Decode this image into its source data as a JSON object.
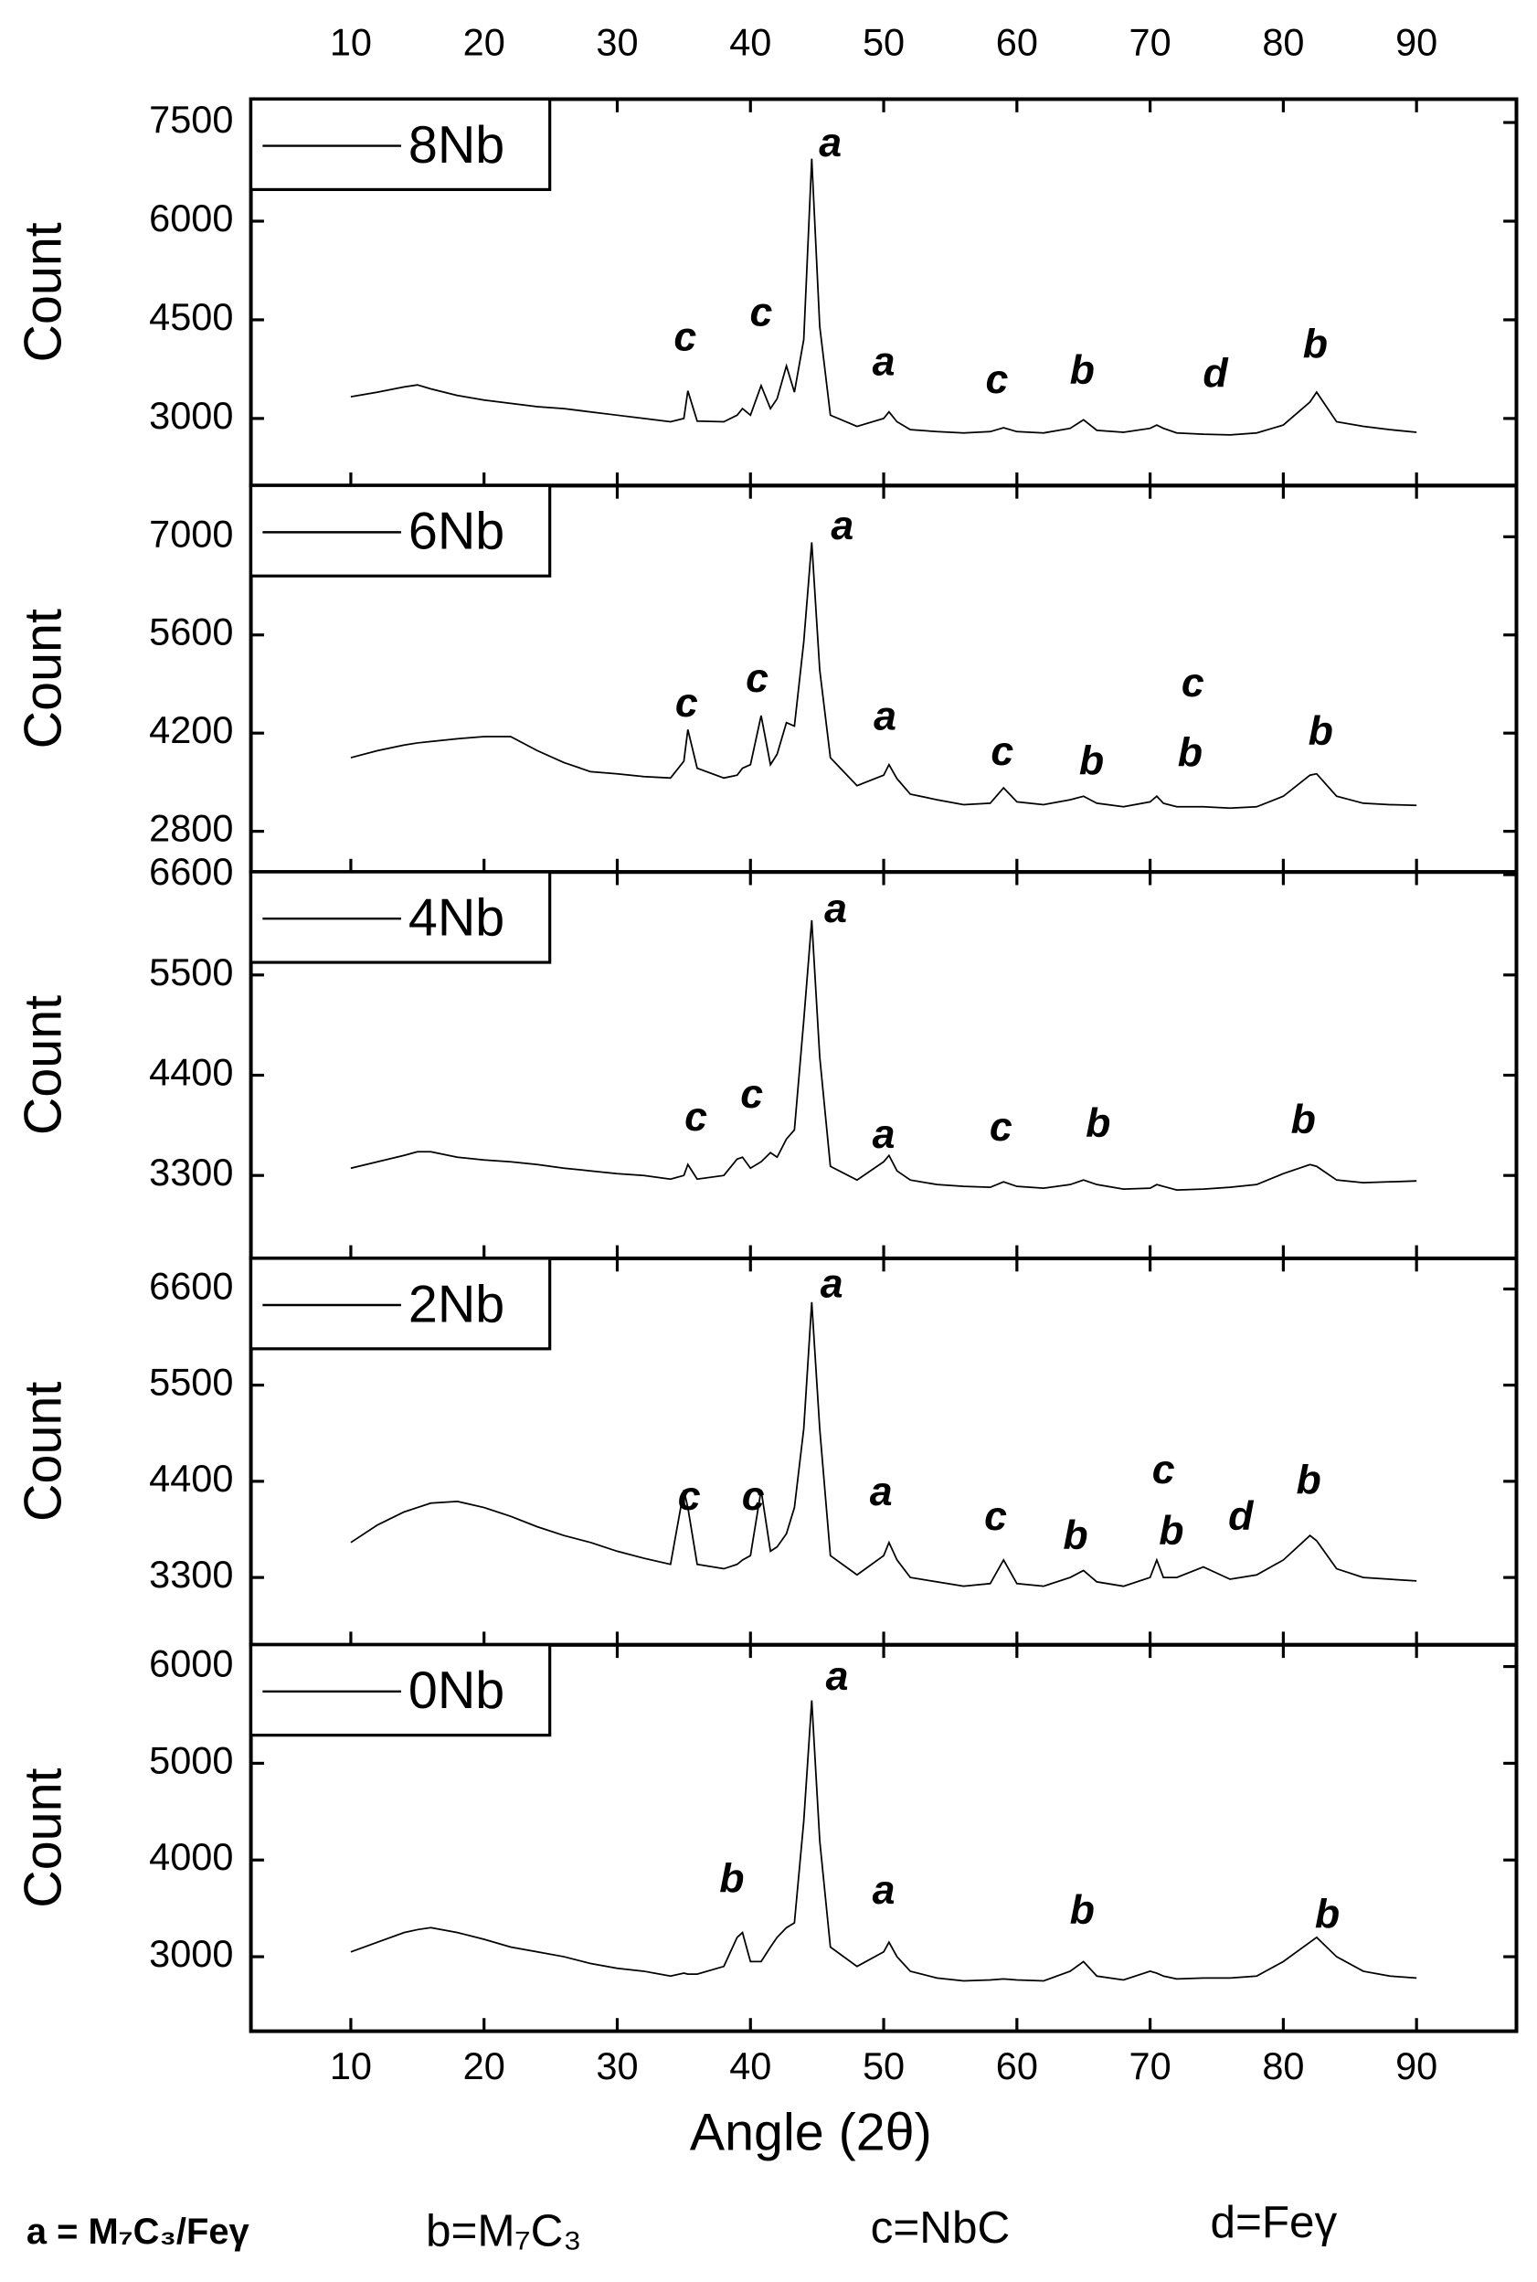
{
  "chart_data": [
    {
      "type": "line",
      "ylabel": "Count",
      "xlim": [
        2.5,
        97.5
      ],
      "xticks": [
        10,
        20,
        30,
        40,
        50,
        60,
        70,
        80,
        90
      ],
      "ylim": [
        1980,
        7855
      ],
      "yticks": [
        3000,
        4500,
        6000,
        7500
      ],
      "legend": "upper left",
      "x": [
        10,
        12,
        14,
        15,
        16,
        18,
        20,
        22,
        24,
        26,
        28,
        30,
        32,
        34,
        35,
        35.3,
        36,
        38,
        39,
        39.4,
        40,
        40.8,
        41.5,
        42,
        42.7,
        43.3,
        44,
        44.6,
        45.2,
        46,
        48,
        50,
        50.4,
        51,
        52,
        54,
        56,
        58,
        59,
        60,
        62,
        64,
        65,
        66,
        68,
        70,
        70.5,
        71,
        72,
        74,
        76,
        78,
        80,
        82,
        82.5,
        84,
        86,
        88,
        90
      ],
      "series": [
        {
          "name": "8Nb",
          "color": "#000000",
          "values": [
            3330,
            3400,
            3480,
            3510,
            3450,
            3350,
            3280,
            3230,
            3180,
            3150,
            3100,
            3050,
            3000,
            2950,
            3000,
            3420,
            2960,
            2950,
            3050,
            3150,
            3050,
            3500,
            3150,
            3300,
            3800,
            3400,
            4200,
            6950,
            4400,
            3050,
            2880,
            3000,
            3100,
            2950,
            2830,
            2800,
            2780,
            2800,
            2860,
            2800,
            2780,
            2850,
            2980,
            2820,
            2790,
            2850,
            2900,
            2850,
            2780,
            2760,
            2750,
            2780,
            2900,
            3250,
            3400,
            2950,
            2880,
            2830,
            2790
          ]
        }
      ],
      "annotations": [
        {
          "text": "c",
          "x": 35.1,
          "y": 4200
        },
        {
          "text": "c",
          "x": 40.8,
          "y": 4575
        },
        {
          "text": "a",
          "x": 46.0,
          "y": 7150
        },
        {
          "text": "a",
          "x": 50.0,
          "y": 3820
        },
        {
          "text": "c",
          "x": 58.5,
          "y": 3550
        },
        {
          "text": "b",
          "x": 64.9,
          "y": 3690
        },
        {
          "text": "d",
          "x": 74.9,
          "y": 3640
        },
        {
          "text": "b",
          "x": 82.4,
          "y": 4090
        }
      ]
    },
    {
      "type": "line",
      "ylabel": "Count",
      "xlim": [
        2.5,
        97.5
      ],
      "xticks": [
        10,
        20,
        30,
        40,
        50,
        60,
        70,
        80,
        90
      ],
      "ylim": [
        2220,
        7730
      ],
      "yticks": [
        2800,
        4200,
        5600,
        7000
      ],
      "legend": "upper left",
      "x": [
        10,
        12,
        14,
        15,
        16,
        18,
        20,
        22,
        24,
        26,
        28,
        30,
        32,
        34,
        35,
        35.3,
        36,
        38,
        39,
        39.4,
        40,
        40.8,
        41.5,
        42,
        42.7,
        43.3,
        44,
        44.6,
        45.2,
        46,
        48,
        50,
        50.4,
        51,
        52,
        54,
        56,
        58,
        59,
        60,
        62,
        64,
        65,
        66,
        68,
        70,
        70.5,
        71,
        72,
        74,
        76,
        78,
        80,
        82,
        82.5,
        84,
        86,
        88,
        90
      ],
      "series": [
        {
          "name": "6Nb",
          "color": "#000000",
          "values": [
            3850,
            3950,
            4030,
            4060,
            4080,
            4120,
            4150,
            4150,
            3950,
            3780,
            3650,
            3620,
            3580,
            3560,
            3800,
            4250,
            3700,
            3560,
            3600,
            3700,
            3750,
            4450,
            3750,
            3900,
            4350,
            4300,
            5500,
            6920,
            5100,
            3850,
            3450,
            3600,
            3750,
            3550,
            3330,
            3250,
            3180,
            3200,
            3420,
            3220,
            3180,
            3250,
            3300,
            3200,
            3150,
            3220,
            3300,
            3200,
            3150,
            3150,
            3130,
            3150,
            3300,
            3600,
            3620,
            3300,
            3200,
            3180,
            3170
          ]
        }
      ],
      "annotations": [
        {
          "text": "c",
          "x": 35.2,
          "y": 4590
        },
        {
          "text": "c",
          "x": 40.5,
          "y": 4940
        },
        {
          "text": "a",
          "x": 46.9,
          "y": 7120
        },
        {
          "text": "a",
          "x": 50.1,
          "y": 4400
        },
        {
          "text": "c",
          "x": 58.9,
          "y": 3900
        },
        {
          "text": "b",
          "x": 65.6,
          "y": 3760
        },
        {
          "text": "c",
          "x": 73.2,
          "y": 4880
        },
        {
          "text": "b",
          "x": 73.0,
          "y": 3880
        },
        {
          "text": "b",
          "x": 82.8,
          "y": 4190
        }
      ]
    },
    {
      "type": "line",
      "ylabel": "Count",
      "xlim": [
        2.5,
        97.5
      ],
      "xticks": [
        10,
        20,
        30,
        40,
        50,
        60,
        70,
        80,
        90
      ],
      "ylim": [
        2390,
        6630
      ],
      "yticks": [
        3300,
        4400,
        5500,
        6600
      ],
      "legend": "upper left",
      "x": [
        10,
        12,
        14,
        15,
        16,
        18,
        20,
        22,
        24,
        26,
        28,
        30,
        32,
        34,
        35,
        35.3,
        36,
        38,
        39,
        39.4,
        40,
        40.8,
        41.5,
        42,
        42.7,
        43.3,
        44,
        44.6,
        45.2,
        46,
        48,
        50,
        50.4,
        51,
        52,
        54,
        56,
        58,
        59,
        60,
        62,
        64,
        65,
        66,
        68,
        70,
        70.5,
        71,
        72,
        74,
        76,
        78,
        80,
        82,
        82.5,
        84,
        86,
        88,
        90
      ],
      "series": [
        {
          "name": "4Nb",
          "color": "#000000",
          "values": [
            3380,
            3450,
            3520,
            3560,
            3560,
            3500,
            3470,
            3450,
            3420,
            3380,
            3350,
            3320,
            3300,
            3260,
            3300,
            3420,
            3260,
            3300,
            3480,
            3500,
            3380,
            3450,
            3550,
            3500,
            3700,
            3800,
            5000,
            6100,
            4600,
            3400,
            3250,
            3450,
            3520,
            3350,
            3250,
            3200,
            3180,
            3170,
            3230,
            3180,
            3160,
            3200,
            3250,
            3200,
            3150,
            3160,
            3200,
            3180,
            3140,
            3150,
            3170,
            3200,
            3320,
            3420,
            3400,
            3250,
            3220,
            3230,
            3240
          ]
        }
      ],
      "annotations": [
        {
          "text": "c",
          "x": 35.9,
          "y": 3910
        },
        {
          "text": "c",
          "x": 40.1,
          "y": 4160
        },
        {
          "text": "a",
          "x": 46.4,
          "y": 6200
        },
        {
          "text": "a",
          "x": 50.0,
          "y": 3720
        },
        {
          "text": "c",
          "x": 58.8,
          "y": 3800
        },
        {
          "text": "b",
          "x": 66.1,
          "y": 3840
        },
        {
          "text": "b",
          "x": 81.5,
          "y": 3880
        }
      ]
    },
    {
      "type": "line",
      "ylabel": "Count",
      "xlim": [
        2.5,
        97.5
      ],
      "xticks": [
        10,
        20,
        30,
        40,
        50,
        60,
        70,
        80,
        90
      ],
      "ylim": [
        2530,
        6950
      ],
      "yticks": [
        3300,
        4400,
        5500,
        6600
      ],
      "legend": "upper left",
      "x": [
        10,
        12,
        14,
        15,
        16,
        18,
        20,
        22,
        24,
        26,
        28,
        30,
        32,
        34,
        35,
        35.3,
        36,
        38,
        39,
        39.4,
        40,
        40.8,
        41.5,
        42,
        42.7,
        43.3,
        44,
        44.6,
        45.2,
        46,
        48,
        50,
        50.4,
        51,
        52,
        54,
        56,
        58,
        59,
        60,
        62,
        64,
        65,
        66,
        68,
        70,
        70.5,
        71,
        72,
        74,
        76,
        78,
        80,
        82,
        82.5,
        84,
        86,
        88,
        90
      ],
      "series": [
        {
          "name": "2Nb",
          "color": "#000000",
          "values": [
            3700,
            3900,
            4050,
            4100,
            4150,
            4170,
            4100,
            4000,
            3880,
            3780,
            3700,
            3600,
            3520,
            3450,
            4300,
            4100,
            3450,
            3400,
            3450,
            3500,
            3550,
            4300,
            3600,
            3650,
            3800,
            4100,
            5000,
            6450,
            5000,
            3550,
            3330,
            3550,
            3700,
            3500,
            3300,
            3250,
            3200,
            3230,
            3500,
            3230,
            3200,
            3300,
            3380,
            3250,
            3200,
            3300,
            3500,
            3300,
            3300,
            3420,
            3280,
            3330,
            3500,
            3780,
            3720,
            3400,
            3300,
            3280,
            3260
          ]
        }
      ],
      "annotations": [
        {
          "text": "c",
          "x": 35.4,
          "y": 4200
        },
        {
          "text": "c",
          "x": 40.2,
          "y": 4200
        },
        {
          "text": "a",
          "x": 46.1,
          "y": 6630
        },
        {
          "text": "a",
          "x": 49.8,
          "y": 4250
        },
        {
          "text": "c",
          "x": 58.4,
          "y": 3970
        },
        {
          "text": "b",
          "x": 64.4,
          "y": 3750
        },
        {
          "text": "c",
          "x": 71.0,
          "y": 4500
        },
        {
          "text": "b",
          "x": 71.6,
          "y": 3800
        },
        {
          "text": "d",
          "x": 76.8,
          "y": 3970
        },
        {
          "text": "b",
          "x": 81.9,
          "y": 4380
        }
      ]
    },
    {
      "type": "line",
      "ylabel": "Count",
      "xlabel": "Angle (2θ)",
      "xlim": [
        2.5,
        97.5
      ],
      "xticks": [
        10,
        20,
        30,
        40,
        50,
        60,
        70,
        80,
        90
      ],
      "ylim": [
        2230,
        6225
      ],
      "yticks": [
        3000,
        4000,
        5000,
        6000
      ],
      "legend": "upper left",
      "x": [
        10,
        12,
        14,
        15,
        16,
        18,
        20,
        22,
        24,
        26,
        28,
        30,
        32,
        34,
        35,
        35.3,
        36,
        38,
        39,
        39.4,
        40,
        40.8,
        41.5,
        42,
        42.7,
        43.3,
        44,
        44.6,
        45.2,
        46,
        48,
        50,
        50.4,
        51,
        52,
        54,
        56,
        58,
        59,
        60,
        62,
        64,
        65,
        66,
        68,
        70,
        70.5,
        71,
        72,
        74,
        76,
        78,
        80,
        82,
        82.5,
        84,
        86,
        88,
        90
      ],
      "series": [
        {
          "name": "0Nb",
          "color": "#000000",
          "values": [
            3050,
            3150,
            3250,
            3280,
            3300,
            3250,
            3180,
            3100,
            3050,
            3000,
            2930,
            2880,
            2850,
            2800,
            2830,
            2820,
            2820,
            2900,
            3200,
            3250,
            2950,
            2950,
            3100,
            3200,
            3300,
            3350,
            4400,
            5650,
            4200,
            3100,
            2900,
            3050,
            3150,
            3000,
            2850,
            2780,
            2750,
            2760,
            2770,
            2760,
            2750,
            2850,
            2950,
            2800,
            2760,
            2850,
            2830,
            2800,
            2770,
            2780,
            2780,
            2800,
            2950,
            3150,
            3200,
            3000,
            2850,
            2800,
            2780
          ]
        }
      ],
      "annotations": [
        {
          "text": "b",
          "x": 38.6,
          "y": 3780
        },
        {
          "text": "a",
          "x": 46.5,
          "y": 5870
        },
        {
          "text": "a",
          "x": 50.0,
          "y": 3660
        },
        {
          "text": "b",
          "x": 64.9,
          "y": 3450
        },
        {
          "text": "b",
          "x": 83.3,
          "y": 3410
        }
      ]
    }
  ],
  "notes": [
    "a = M₇C₃/Feγ",
    "b=M₇C₃",
    "c=NbC",
    "d=Feγ"
  ]
}
